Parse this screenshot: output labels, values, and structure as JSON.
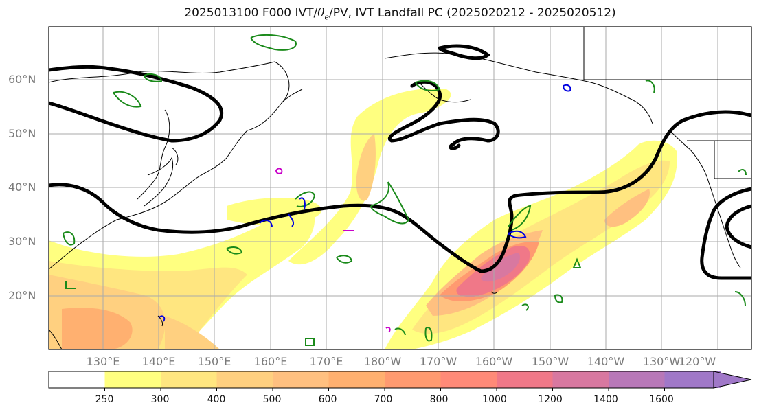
{
  "title": {
    "prefix": "2025013100 F000 IVT/",
    "theta": "θ",
    "sub": "e",
    "suffix": "/PV, IVT Landfall PC (2025020212 - 2025020512)"
  },
  "lat_labels": [
    "60°N",
    "50°N",
    "40°N",
    "30°N",
    "20°N"
  ],
  "lon_labels": [
    "130°E",
    "140°E",
    "150°E",
    "160°E",
    "170°E",
    "180°W",
    "170°W",
    "160°W",
    "150°W",
    "140°W",
    "130°W",
    "120°W"
  ],
  "colorbar": {
    "ticks": [
      "250",
      "300",
      "400",
      "500",
      "600",
      "700",
      "800",
      "1000",
      "1200",
      "1400",
      "1600"
    ],
    "colors": [
      "#ffffff",
      "#ffff80",
      "#ffe680",
      "#ffd080",
      "#ffc080",
      "#ffb070",
      "#ff9a70",
      "#ff8a78",
      "#f07888",
      "#d878a0",
      "#b878b8",
      "#a078c8"
    ]
  },
  "layers": {
    "ivt": "IVT shading",
    "theta_e": "black contour",
    "pv_positive": "green contour",
    "pv_negative": "blue contour",
    "pv_other": "magenta contour"
  }
}
